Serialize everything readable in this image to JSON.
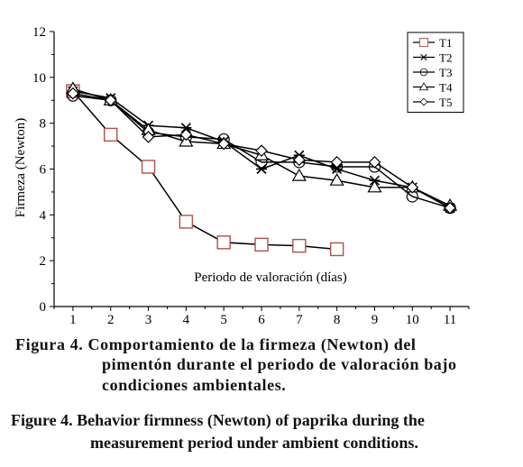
{
  "chart_data": {
    "type": "line",
    "ylabel": "Firmeza (Newton)",
    "xlabel": "Periodo de valoración (días)",
    "x_ticks": [
      "1",
      "2",
      "3",
      "4",
      "5",
      "6",
      "7",
      "8",
      "9",
      "10",
      "11"
    ],
    "y_ticks": [
      "0",
      "2",
      "4",
      "6",
      "8",
      "10",
      "12"
    ],
    "ylim": [
      0,
      12
    ],
    "xlim": [
      0.5,
      11.5
    ],
    "legend_position": "top-right",
    "series": [
      {
        "name": "T1",
        "marker": "square",
        "color": "#b0504a",
        "x": [
          1,
          2,
          3,
          4,
          5,
          6,
          7,
          8
        ],
        "y": [
          9.4,
          7.5,
          6.1,
          3.7,
          2.8,
          2.7,
          2.65,
          2.5
        ]
      },
      {
        "name": "T2",
        "marker": "star",
        "color": "#000000",
        "x": [
          1,
          2,
          3,
          4,
          5,
          6,
          7,
          8,
          9,
          10,
          11
        ],
        "y": [
          9.4,
          9.1,
          7.9,
          7.8,
          7.2,
          6.0,
          6.6,
          6.0,
          5.5,
          5.2,
          4.3
        ]
      },
      {
        "name": "T3",
        "marker": "circle",
        "color": "#000000",
        "x": [
          1,
          2,
          3,
          4,
          5,
          6,
          7,
          8,
          9,
          10,
          11
        ],
        "y": [
          9.2,
          9.0,
          7.6,
          7.4,
          7.3,
          6.3,
          6.3,
          6.1,
          6.1,
          4.8,
          4.3
        ]
      },
      {
        "name": "T4",
        "marker": "triangle",
        "color": "#000000",
        "x": [
          1,
          2,
          3,
          4,
          5,
          6,
          7,
          8,
          9,
          10,
          11
        ],
        "y": [
          9.5,
          9.0,
          7.7,
          7.2,
          7.1,
          6.6,
          5.7,
          5.5,
          5.2,
          5.2,
          4.4
        ]
      },
      {
        "name": "T5",
        "marker": "diamond",
        "color": "#000000",
        "x": [
          1,
          2,
          3,
          4,
          5,
          6,
          7,
          8,
          9,
          10,
          11
        ],
        "y": [
          9.3,
          9.0,
          7.4,
          7.5,
          7.1,
          6.8,
          6.4,
          6.3,
          6.3,
          5.2,
          4.3
        ]
      }
    ]
  },
  "caption_es": {
    "lines": [
      "Figura 4. Comportamiento de la firmeza (Newton) del",
      "pimentón durante el periodo de valoración bajo",
      "condiciones ambientales."
    ]
  },
  "caption_en": {
    "lines": [
      "Figure 4. Behavior firmness (Newton) of paprika during the",
      "measurement period under ambient conditions."
    ]
  }
}
